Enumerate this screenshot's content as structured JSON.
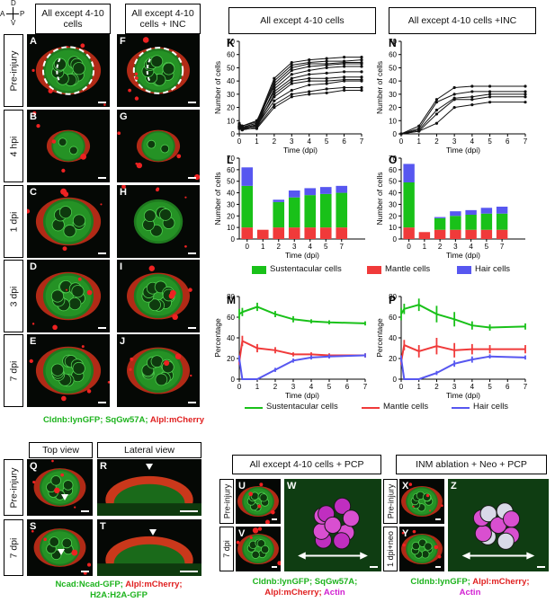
{
  "orientation": {
    "a": "A",
    "p": "P",
    "d": "D",
    "v": "V"
  },
  "headers": {
    "col1": "All except 4-10 cells",
    "col2": "All except 4-10 cells + INC",
    "chart_left": "All except 4-10 cells",
    "chart_right": "All except 4-10 cells +INC",
    "top_view": "Top view",
    "lateral_view": "Lateral view",
    "pcp": "All except 4-10 cells + PCP",
    "inm": "INM ablation + Neo + PCP"
  },
  "rows": [
    "Pre-injury",
    "4 hpi",
    "1 dpi",
    "3 dpi",
    "7 dpi"
  ],
  "panels_left": [
    "A",
    "B",
    "C",
    "D",
    "E"
  ],
  "panels_right": [
    "F",
    "G",
    "H",
    "I",
    "J"
  ],
  "caption_top": {
    "part1": "Cldnb:lynGFP; SqGw57A;",
    "part2": " Alpl:mCherry"
  },
  "bottom": {
    "rows": [
      "Pre-injury",
      "7 dpi"
    ],
    "panels": [
      "Q",
      "R",
      "S",
      "T"
    ],
    "caption": {
      "l1a": "Ncad:Ncad-GFP;",
      "l1b": " Alpl:mCherry;",
      "l2": "H2A:H2A-GFP"
    },
    "pcp_rows": [
      "Pre-injury",
      "7 dpi"
    ],
    "pcp_panels": [
      "U",
      "V",
      "W"
    ],
    "pcp_caption": {
      "l1": "Cldnb:lynGFP; SqGw57A;",
      "l2a": "Alpl:mCherry;",
      "l2b": " Actin"
    },
    "inm_rows": [
      "Pre-injury",
      "1 dpi+neo"
    ],
    "inm_panels": [
      "X",
      "Y",
      "Z"
    ],
    "inm_caption": {
      "l1a": "Cldnb:lynGFP;",
      "l1b": " Alpl:mCherry;",
      "l2": "Actin"
    }
  },
  "chart_letters": [
    "K",
    "N",
    "L",
    "O",
    "M",
    "P"
  ],
  "legend": {
    "sustentacular": "Sustentacular cells",
    "mantle": "Mantle cells",
    "hair": "Hair cells"
  },
  "colors": {
    "sustentacular": "#19c119",
    "mantle": "#f03a3a",
    "hair": "#5757f0"
  },
  "chart_data": [
    {
      "id": "K",
      "type": "line",
      "xlabel": "Time (dpi)",
      "ylabel": "Number of cells",
      "xlim": [
        0,
        7
      ],
      "ylim": [
        0,
        70
      ],
      "xticks": [
        0,
        1,
        2,
        3,
        4,
        5,
        6,
        7
      ],
      "yticks": [
        0,
        10,
        20,
        30,
        40,
        50,
        60,
        70
      ],
      "x": [
        0,
        0.17,
        1,
        2,
        3,
        4,
        5,
        6,
        7
      ],
      "series": [
        {
          "values": [
            7,
            6,
            9,
            42,
            54,
            56,
            57,
            58,
            58
          ]
        },
        {
          "values": [
            6,
            5,
            8,
            40,
            52,
            54,
            55,
            55,
            56
          ]
        },
        {
          "values": [
            5,
            4,
            7,
            38,
            50,
            53,
            53,
            54,
            54
          ]
        },
        {
          "values": [
            8,
            6,
            10,
            36,
            48,
            51,
            52,
            53,
            53
          ]
        },
        {
          "values": [
            5,
            4,
            6,
            34,
            45,
            48,
            50,
            51,
            51
          ]
        },
        {
          "values": [
            6,
            5,
            8,
            32,
            42,
            45,
            46,
            47,
            47
          ]
        },
        {
          "values": [
            4,
            3,
            5,
            30,
            40,
            42,
            42,
            43,
            43
          ]
        },
        {
          "values": [
            5,
            4,
            7,
            28,
            38,
            40,
            40,
            41,
            41
          ]
        },
        {
          "values": [
            6,
            5,
            6,
            25,
            33,
            37,
            38,
            40,
            40
          ]
        },
        {
          "values": [
            4,
            3,
            5,
            22,
            30,
            32,
            34,
            35,
            35
          ]
        },
        {
          "values": [
            5,
            4,
            4,
            20,
            28,
            30,
            31,
            33,
            33
          ]
        }
      ]
    },
    {
      "id": "N",
      "type": "line",
      "xlabel": "Time (dpi)",
      "ylabel": "Number of cells",
      "xlim": [
        0,
        7
      ],
      "ylim": [
        0,
        70
      ],
      "xticks": [
        0,
        1,
        2,
        3,
        4,
        5,
        6,
        7
      ],
      "yticks": [
        0,
        10,
        20,
        30,
        40,
        50,
        60,
        70
      ],
      "x": [
        0,
        1,
        2,
        3,
        4,
        5,
        7
      ],
      "series": [
        {
          "values": [
            0,
            6,
            26,
            35,
            36,
            36,
            36
          ]
        },
        {
          "values": [
            0,
            4,
            24,
            30,
            32,
            32,
            32
          ]
        },
        {
          "values": [
            0,
            3,
            18,
            27,
            28,
            30,
            30
          ]
        },
        {
          "values": [
            0,
            2,
            15,
            26,
            26,
            28,
            28
          ]
        },
        {
          "values": [
            0,
            2,
            8,
            20,
            22,
            24,
            24
          ]
        }
      ]
    },
    {
      "id": "L",
      "type": "bar",
      "stacked": true,
      "xlabel": "Time (dpi)",
      "ylabel": "Number of cells",
      "categories": [
        "0",
        "1",
        "2",
        "3",
        "4",
        "5",
        "7"
      ],
      "x": [
        0,
        1,
        2,
        3,
        4,
        5,
        6
      ],
      "xticks": [
        0,
        1,
        2,
        3,
        4,
        5,
        6,
        7
      ],
      "xlim": [
        -0.5,
        7.5
      ],
      "ylim": [
        0,
        70
      ],
      "yticks": [
        0,
        10,
        20,
        30,
        40,
        50,
        60,
        70
      ],
      "series": [
        {
          "name": "Mantle cells",
          "values": [
            10,
            8,
            10,
            10,
            10,
            10,
            10
          ]
        },
        {
          "name": "Sustentacular cells",
          "values": [
            36,
            0,
            22,
            26,
            28,
            29,
            30
          ]
        },
        {
          "name": "Hair cells",
          "values": [
            16,
            0,
            2,
            6,
            6,
            6,
            6
          ]
        }
      ]
    },
    {
      "id": "O",
      "type": "bar",
      "stacked": true,
      "xlabel": "Time (dpi)",
      "ylabel": "Number of cells",
      "categories": [
        "0",
        "1",
        "2",
        "3",
        "4",
        "5",
        "7"
      ],
      "x": [
        0,
        1,
        2,
        3,
        4,
        5,
        6
      ],
      "xticks": [
        0,
        1,
        2,
        3,
        4,
        5,
        6,
        7
      ],
      "xlim": [
        -0.5,
        7.5
      ],
      "ylim": [
        0,
        70
      ],
      "yticks": [
        0,
        10,
        20,
        30,
        40,
        50,
        60,
        70
      ],
      "series": [
        {
          "name": "Mantle cells",
          "values": [
            10,
            6,
            8,
            8,
            8,
            8,
            8
          ]
        },
        {
          "name": "Sustentacular cells",
          "values": [
            39,
            0,
            10,
            12,
            13,
            14,
            14
          ]
        },
        {
          "name": "Hair cells",
          "values": [
            16,
            0,
            1,
            4,
            4,
            5,
            6
          ]
        }
      ]
    },
    {
      "id": "M",
      "type": "line",
      "xlabel": "Time (dpi)",
      "ylabel": "Percentage",
      "xlim": [
        0,
        7
      ],
      "ylim": [
        0,
        80
      ],
      "xticks": [
        0,
        1,
        2,
        3,
        4,
        5,
        6,
        7
      ],
      "yticks": [
        0,
        20,
        40,
        60,
        80
      ],
      "series": [
        {
          "name": "Sustentacular cells",
          "x": [
            0,
            0.17,
            1,
            2,
            3,
            4,
            5,
            7
          ],
          "values": [
            63,
            65,
            70,
            63,
            58,
            56,
            55,
            54
          ],
          "err": [
            5,
            4,
            4,
            3,
            3,
            2,
            2,
            2
          ]
        },
        {
          "name": "Mantle cells",
          "x": [
            0,
            0.17,
            1,
            2,
            3,
            4,
            5,
            7
          ],
          "values": [
            17,
            37,
            30,
            28,
            24,
            24,
            23,
            23
          ],
          "err": [
            3,
            5,
            4,
            3,
            2,
            2,
            2,
            2
          ]
        },
        {
          "name": "Hair cells",
          "x": [
            0,
            0.17,
            1,
            2,
            3,
            4,
            5,
            7
          ],
          "values": [
            20,
            0,
            0,
            9,
            18,
            21,
            22,
            23
          ],
          "err": [
            3,
            0,
            0,
            2,
            2,
            2,
            2,
            2
          ]
        }
      ]
    },
    {
      "id": "P",
      "type": "line",
      "xlabel": "Time (dpi)",
      "ylabel": "Percentage",
      "xlim": [
        0,
        7
      ],
      "ylim": [
        0,
        80
      ],
      "xticks": [
        0,
        1,
        2,
        3,
        4,
        5,
        6,
        7
      ],
      "yticks": [
        0,
        20,
        40,
        60,
        80
      ],
      "series": [
        {
          "name": "Sustentacular cells",
          "x": [
            0,
            0.17,
            1,
            2,
            3,
            4,
            5,
            7
          ],
          "values": [
            63,
            68,
            72,
            63,
            58,
            52,
            50,
            51
          ],
          "err": [
            6,
            5,
            6,
            8,
            7,
            4,
            3,
            3
          ]
        },
        {
          "name": "Mantle cells",
          "x": [
            0,
            0.17,
            1,
            2,
            3,
            4,
            5,
            7
          ],
          "values": [
            17,
            33,
            27,
            32,
            28,
            29,
            29,
            29
          ],
          "err": [
            3,
            5,
            6,
            8,
            7,
            5,
            4,
            4
          ]
        },
        {
          "name": "Hair cells",
          "x": [
            0,
            0.17,
            1,
            2,
            3,
            4,
            5,
            7
          ],
          "values": [
            20,
            0,
            0,
            6,
            15,
            19,
            22,
            21
          ],
          "err": [
            3,
            0,
            0,
            2,
            3,
            3,
            2,
            2
          ]
        }
      ]
    }
  ]
}
